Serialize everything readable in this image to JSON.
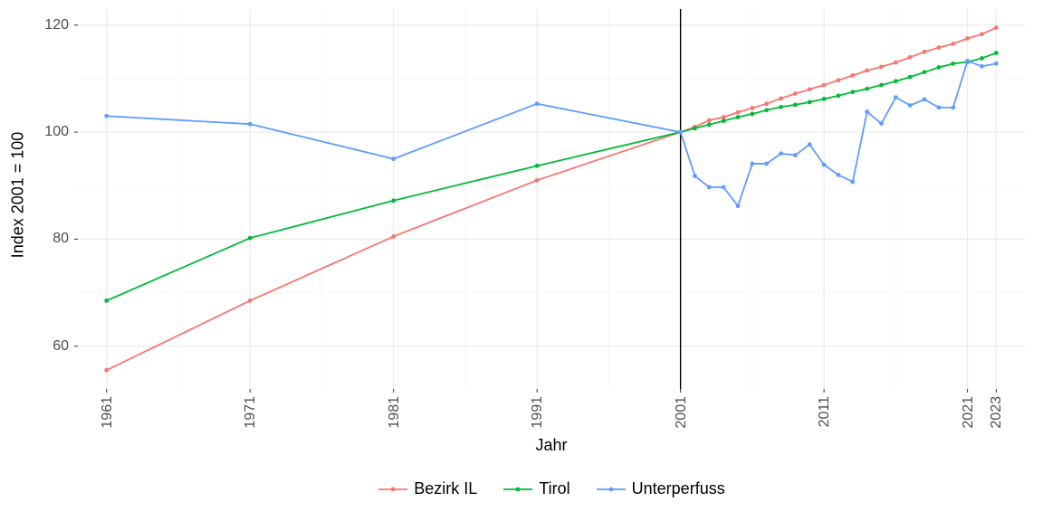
{
  "chart": {
    "type": "line",
    "background_color": "#ffffff",
    "panel_bg": "#ffffff",
    "grid_major_color": "#ebebeb",
    "grid_minor_color": "#f5f5f5",
    "axis_tick_color": "#333333",
    "tick_label_fontsize": 16,
    "axis_title_fontsize": 18,
    "tick_label_color": "#4d4d4d",
    "axis_title_color": "#000000",
    "axis_line_color": "#000000",
    "vline_x": 2001,
    "vline_color": "#000000",
    "vline_width": 1.4,
    "x_axis": {
      "title": "Jahr",
      "breaks": [
        1961,
        1971,
        1981,
        1991,
        2001,
        2011,
        2021,
        2023
      ],
      "tick_labels": [
        "1961",
        "1971",
        "1981",
        "1991",
        "2001",
        "2011",
        "2021",
        "2023"
      ],
      "tick_rotation_deg": -90,
      "range_min": 1959,
      "range_max": 2025,
      "minor_breaks": [
        1966,
        1976,
        1986,
        1996,
        2006,
        2016
      ]
    },
    "y_axis": {
      "title": "Index 2001 = 100",
      "breaks": [
        60,
        80,
        100,
        120
      ],
      "tick_labels": [
        "60",
        "80",
        "100",
        "120"
      ],
      "range_min": 52,
      "range_max": 123,
      "minor_breaks": [
        70,
        90,
        110
      ]
    },
    "line_width": 1.8,
    "marker_radius": 2.4,
    "series": [
      {
        "name": "Bezirk IL",
        "color": "#f8766d",
        "x": [
          1961,
          1971,
          1981,
          1991,
          2001,
          2002,
          2003,
          2004,
          2005,
          2006,
          2007,
          2008,
          2009,
          2010,
          2011,
          2012,
          2013,
          2014,
          2015,
          2016,
          2017,
          2018,
          2019,
          2020,
          2021,
          2022,
          2023
        ],
        "y": [
          55.5,
          68.5,
          80.5,
          91.0,
          100.0,
          101.0,
          102.2,
          102.8,
          103.7,
          104.5,
          105.3,
          106.3,
          107.2,
          108.0,
          108.8,
          109.7,
          110.6,
          111.5,
          112.2,
          113.0,
          114.0,
          115.0,
          115.8,
          116.5,
          117.5,
          118.3,
          119.5
        ]
      },
      {
        "name": "Tirol",
        "color": "#00ba38",
        "x": [
          1961,
          1971,
          1981,
          1991,
          2001,
          2002,
          2003,
          2004,
          2005,
          2006,
          2007,
          2008,
          2009,
          2010,
          2011,
          2012,
          2013,
          2014,
          2015,
          2016,
          2017,
          2018,
          2019,
          2020,
          2021,
          2022,
          2023
        ],
        "y": [
          68.5,
          80.2,
          87.2,
          93.7,
          100.0,
          100.7,
          101.4,
          102.1,
          102.8,
          103.4,
          104.1,
          104.7,
          105.1,
          105.6,
          106.2,
          106.8,
          107.5,
          108.1,
          108.8,
          109.5,
          110.3,
          111.2,
          112.1,
          112.8,
          113.1,
          113.8,
          114.8
        ]
      },
      {
        "name": "Unterperfuss",
        "color": "#619cff",
        "x": [
          1961,
          1971,
          1981,
          1991,
          2001,
          2002,
          2003,
          2004,
          2005,
          2006,
          2007,
          2008,
          2009,
          2010,
          2011,
          2012,
          2013,
          2014,
          2015,
          2016,
          2017,
          2018,
          2019,
          2020,
          2021,
          2022,
          2023
        ],
        "y": [
          103.0,
          101.5,
          95.0,
          105.3,
          100.0,
          91.8,
          89.7,
          89.7,
          86.2,
          94.1,
          94.1,
          96.0,
          95.7,
          97.7,
          93.9,
          92.0,
          90.7,
          103.8,
          101.6,
          106.5,
          105.0,
          106.1,
          104.6,
          104.6,
          113.3,
          112.3,
          112.8
        ]
      }
    ],
    "legend": {
      "position": "bottom",
      "items": [
        {
          "label": "Bezirk IL",
          "color": "#f8766d"
        },
        {
          "label": "Tirol",
          "color": "#00ba38"
        },
        {
          "label": "Unterperfuss",
          "color": "#619cff"
        }
      ]
    }
  }
}
